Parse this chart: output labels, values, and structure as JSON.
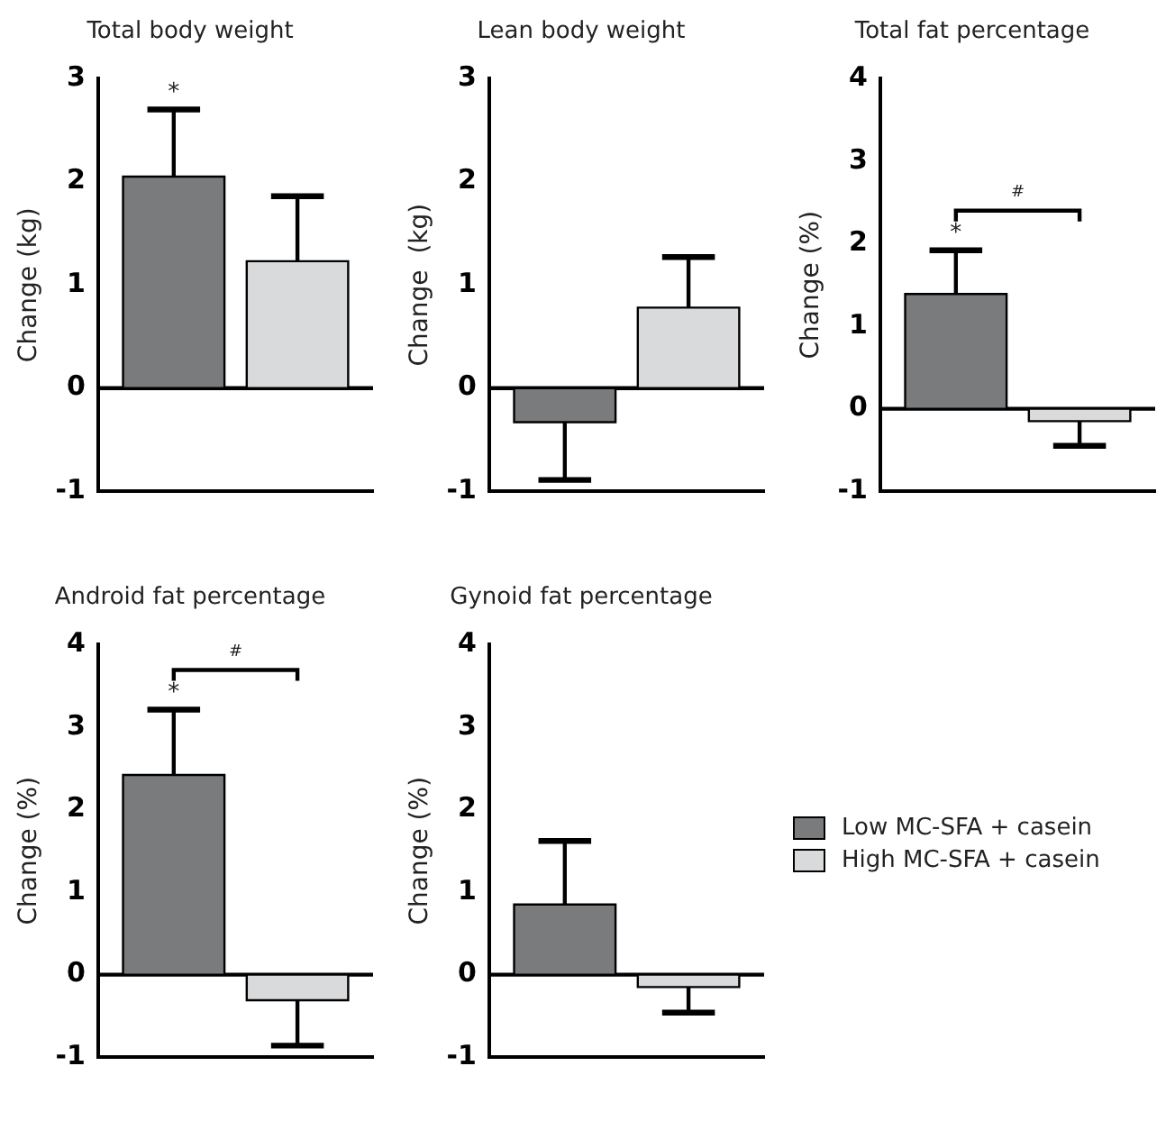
{
  "chart_data": [
    {
      "type": "bar",
      "title": "Total body weight",
      "ylabel": "Change (kg)",
      "categories": [
        null
      ],
      "ylim": [
        -1,
        3
      ],
      "yticks": [
        -1,
        0,
        1,
        2,
        3
      ],
      "grid": false,
      "legend": false,
      "series": [
        {
          "color": "#7a7b7d",
          "values": [
            2.05
          ],
          "errors": [
            [
              2.05,
              2.7
            ]
          ]
        },
        {
          "color": "#d9dadc",
          "values": [
            1.23
          ],
          "errors": [
            [
              1.23,
              1.86
            ]
          ]
        }
      ],
      "ref_lines": [
        {
          "axis": "y",
          "value": 0
        }
      ],
      "annotations": [
        "*"
      ]
    },
    {
      "type": "bar",
      "title": "Lean body weight",
      "ylabel": "Change  (kg)",
      "categories": [
        null
      ],
      "ylim": [
        -1,
        3
      ],
      "yticks": [
        -1,
        0,
        1,
        2,
        3
      ],
      "grid": false,
      "legend": false,
      "series": [
        {
          "color": "#7a7b7d",
          "values": [
            -0.33
          ],
          "errors": [
            [
              -0.89,
              -0.33
            ]
          ]
        },
        {
          "color": "#d9dadc",
          "values": [
            0.78
          ],
          "errors": [
            [
              0.78,
              1.27
            ]
          ]
        }
      ],
      "ref_lines": [
        {
          "axis": "y",
          "value": 0
        }
      ]
    },
    {
      "type": "bar",
      "title": "Total fat percentage",
      "ylabel": "Change (%)",
      "categories": [
        null
      ],
      "ylim": [
        -1,
        4
      ],
      "yticks": [
        -1,
        0,
        1,
        2,
        3,
        4
      ],
      "grid": false,
      "legend": false,
      "series": [
        {
          "color": "#7a7b7d",
          "values": [
            1.39
          ],
          "errors": [
            [
              1.39,
              1.92
            ]
          ]
        },
        {
          "color": "#d9dadc",
          "values": [
            -0.15
          ],
          "errors": [
            [
              -0.45,
              -0.15
            ]
          ]
        }
      ],
      "ref_lines": [
        {
          "axis": "y",
          "value": 0
        }
      ],
      "annotations": [
        "*",
        "#"
      ]
    },
    {
      "type": "bar",
      "title": "Android fat percentage",
      "ylabel": "Change (%)",
      "categories": [
        null
      ],
      "ylim": [
        -1,
        4
      ],
      "yticks": [
        -1,
        0,
        1,
        2,
        3,
        4
      ],
      "grid": false,
      "legend": false,
      "series": [
        {
          "color": "#7a7b7d",
          "values": [
            2.42
          ],
          "errors": [
            [
              2.42,
              3.21
            ]
          ]
        },
        {
          "color": "#d9dadc",
          "values": [
            -0.31
          ],
          "errors": [
            [
              -0.86,
              -0.31
            ]
          ]
        }
      ],
      "ref_lines": [
        {
          "axis": "y",
          "value": 0
        }
      ],
      "annotations": [
        "*",
        "#"
      ]
    },
    {
      "type": "bar",
      "title": "Gynoid fat percentage",
      "ylabel": "Change (%)",
      "categories": [
        null
      ],
      "ylim": [
        -1,
        4
      ],
      "yticks": [
        -1,
        0,
        1,
        2,
        3,
        4
      ],
      "grid": false,
      "legend": "right",
      "series": [
        {
          "name": "Low MC-SFA + casein",
          "color": "#7a7b7d",
          "values": [
            0.85
          ],
          "errors": [
            [
              0.85,
              1.62
            ]
          ]
        },
        {
          "name": "High MC-SFA + casein",
          "color": "#d9dadc",
          "values": [
            -0.15
          ],
          "errors": [
            [
              -0.46,
              -0.15
            ]
          ]
        }
      ],
      "ref_lines": [
        {
          "axis": "y",
          "value": 0
        }
      ]
    }
  ]
}
